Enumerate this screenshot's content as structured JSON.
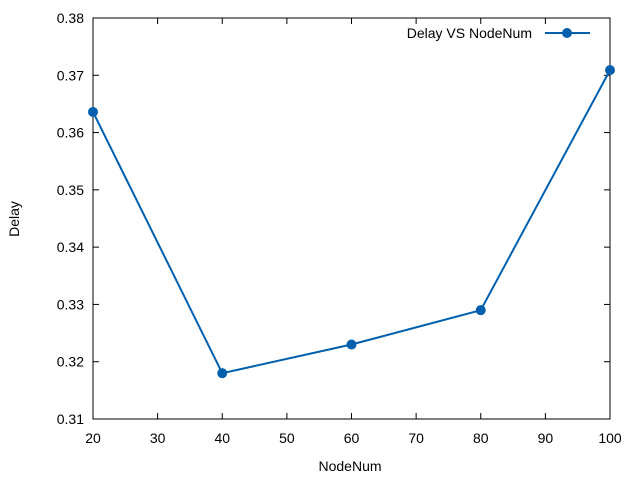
{
  "chart_data": {
    "type": "line",
    "title": "",
    "xlabel": "NodeNum",
    "ylabel": "Delay",
    "xlim": [
      20,
      100
    ],
    "ylim": [
      0.31,
      0.38
    ],
    "xticks": [
      20,
      30,
      40,
      50,
      60,
      70,
      80,
      90,
      100
    ],
    "yticks": [
      0.31,
      0.32,
      0.33,
      0.34,
      0.35,
      0.36,
      0.37,
      0.38
    ],
    "xtick_labels": [
      "20",
      "30",
      "40",
      "50",
      "60",
      "70",
      "80",
      "90",
      "100"
    ],
    "ytick_labels": [
      "0.31",
      "0.32",
      "0.33",
      "0.34",
      "0.35",
      "0.36",
      "0.37",
      "0.38"
    ],
    "grid": false,
    "legend_position": "top-right",
    "series": [
      {
        "name": "Delay VS NodeNum",
        "color": "#0060ad",
        "marker": "circle",
        "x": [
          20,
          40,
          60,
          80,
          100
        ],
        "y": [
          0.3636,
          0.318,
          0.323,
          0.329,
          0.3709
        ]
      }
    ]
  }
}
